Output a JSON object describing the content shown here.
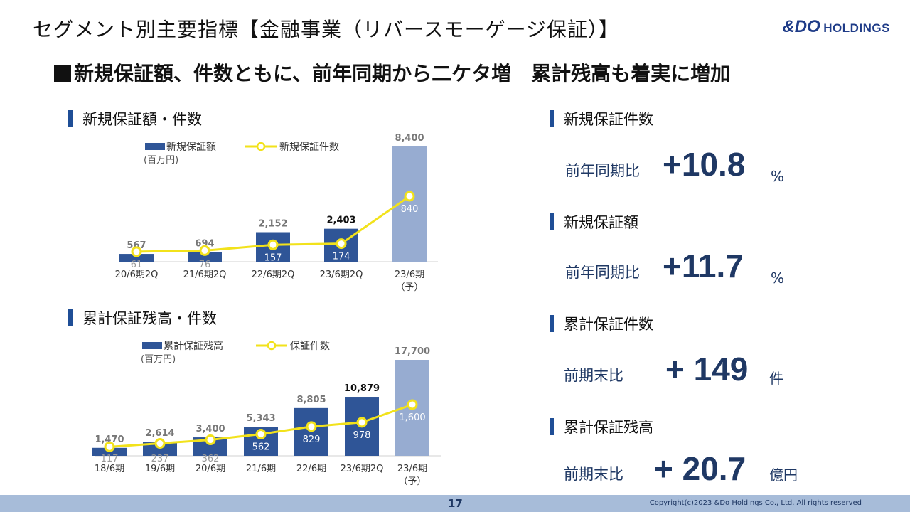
{
  "header": {
    "title": "セグメント別主要指標【金融事業（リバースモーゲージ保証）】",
    "logo_amp_do": "&DO",
    "logo_holdings": "HOLDINGS",
    "subtitle": "新規保証額、件数ともに、前年同期から二ケタ増　累計残高も着実に増加"
  },
  "chart_data": [
    {
      "type": "bar",
      "title": "新規保証額・件数",
      "categories": [
        "20/6期2Q",
        "21/6期2Q",
        "22/6期2Q",
        "23/6期2Q",
        "23/6期（予）"
      ],
      "series": [
        {
          "name": "新規保証額",
          "unit": "(百万円)",
          "kind": "bar",
          "values": [
            567,
            694,
            2152,
            2403,
            8400
          ],
          "labels": [
            "567",
            "694",
            "2,152",
            "2,403",
            "8,400"
          ]
        },
        {
          "name": "新規保証件数",
          "kind": "line",
          "values": [
            61,
            76,
            157,
            174,
            840
          ],
          "labels": [
            "61",
            "76",
            "157",
            "174",
            "840"
          ]
        }
      ],
      "ylim": [
        0,
        8400
      ],
      "y2lim": [
        0,
        1100
      ],
      "bar_colors": [
        "#2f5597",
        "#2f5597",
        "#2f5597",
        "#2f5597",
        "#97acd1"
      ],
      "line_color": "#f2e21b"
    },
    {
      "type": "bar",
      "title": "累計保証残高・件数",
      "categories": [
        "18/6期",
        "19/6期",
        "20/6期",
        "21/6期",
        "22/6期",
        "23/6期2Q",
        "23/6期（予）"
      ],
      "series": [
        {
          "name": "累計保証残高",
          "unit": "(百万円)",
          "kind": "bar",
          "values": [
            1470,
            2614,
            3400,
            5343,
            8805,
            10879,
            17700
          ],
          "labels": [
            "1,470",
            "2,614",
            "3,400",
            "5,343",
            "8,805",
            "10,879",
            "17,700"
          ]
        },
        {
          "name": "保証件数",
          "kind": "line",
          "values": [
            117,
            237,
            362,
            562,
            829,
            978,
            1600
          ],
          "labels": [
            "117",
            "237",
            "362",
            "562",
            "829",
            "978",
            "1,600"
          ]
        }
      ],
      "ylim": [
        0,
        17700
      ],
      "y2lim": [
        0,
        2200
      ],
      "bar_colors": [
        "#2f5597",
        "#2f5597",
        "#2f5597",
        "#2f5597",
        "#2f5597",
        "#2f5597",
        "#97acd1"
      ],
      "line_color": "#f2e21b"
    }
  ],
  "kpis": [
    {
      "title": "新規保証件数",
      "label": "前年同期比",
      "value": "+10.8",
      "unit": "%"
    },
    {
      "title": "新規保証額",
      "label": "前年同期比",
      "value": "+11.7",
      "unit": "%"
    },
    {
      "title": "累計保証件数",
      "label": "前期末比",
      "value": "+ 149",
      "unit": "件"
    },
    {
      "title": "累計保証残高",
      "label": "前期末比",
      "value": "+ 20.7",
      "unit": "億円"
    }
  ],
  "footer": {
    "page": "17",
    "copyright": "Copyright(c)2023 &Do Holdings Co., Ltd. All rights reserved"
  }
}
